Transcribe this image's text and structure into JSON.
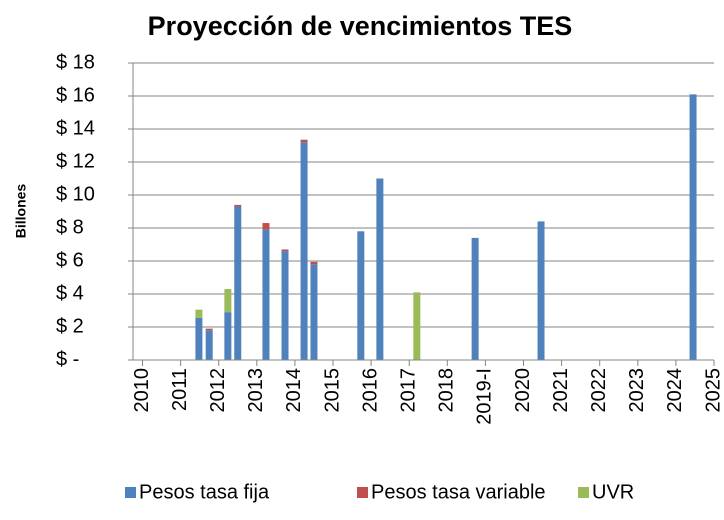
{
  "chart_data": {
    "type": "stacked_bar",
    "title": "Proyección de vencimientos TES",
    "y_label": "Billones",
    "x": [
      2011.48,
      2011.75,
      2012.24,
      2012.5,
      2013.24,
      2013.74,
      2014.24,
      2014.5,
      2015.73,
      2016.23,
      2017.2,
      2018.73,
      2020.46,
      2024.45
    ],
    "series": [
      {
        "name": "Pesos tasa fija",
        "color": "#4f81bd",
        "values": [
          2.55,
          1.8,
          2.9,
          9.3,
          7.9,
          6.6,
          13.2,
          5.8,
          7.8,
          11.0,
          0,
          7.4,
          8.4,
          16.1
        ]
      },
      {
        "name": "Pesos tasa variable",
        "color": "#c0504d",
        "values": [
          0,
          0.1,
          0,
          0.1,
          0.4,
          0.1,
          0.15,
          0.15,
          0,
          0,
          0,
          0,
          0,
          0
        ]
      },
      {
        "name": "UVR",
        "color": "#9bbb59",
        "values": [
          0.5,
          0,
          1.4,
          0,
          0,
          0,
          0,
          0,
          0,
          0,
          4.1,
          0,
          0,
          0
        ]
      }
    ],
    "xlim": [
      2009.75,
      2025
    ],
    "xticks": [
      2010,
      2011,
      2012,
      2013,
      2014,
      2015,
      2016,
      2017,
      2018,
      {
        "value": 2019,
        "label": "2019-I"
      },
      2020,
      2021,
      2022,
      2023,
      2024,
      2025
    ],
    "ylim": [
      0,
      18
    ],
    "yticks": [
      {
        "value": 0,
        "label": "$ -"
      },
      {
        "value": 2,
        "label": "$ 2"
      },
      {
        "value": 4,
        "label": "$ 4"
      },
      {
        "value": 6,
        "label": "$ 6"
      },
      {
        "value": 8,
        "label": "$ 8"
      },
      {
        "value": 10,
        "label": "$ 10"
      },
      {
        "value": 12,
        "label": "$ 12"
      },
      {
        "value": 14,
        "label": "$ 14"
      },
      {
        "value": 16,
        "label": "$ 16"
      },
      {
        "value": 18,
        "label": "$ 18"
      }
    ],
    "grid": true,
    "legend": "bottom"
  }
}
